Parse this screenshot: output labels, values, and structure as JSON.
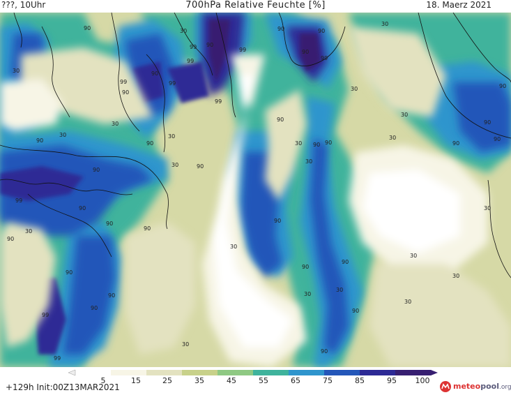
{
  "header": {
    "left": "???, 10Uhr",
    "center": "700hPa Relative Feuchte [%]",
    "right": "18. Maerz 2021"
  },
  "footer": {
    "init": "+129h Init:00Z13MAR2021"
  },
  "logo": {
    "brand_part1": "meteo",
    "brand_part2": "pool",
    "suffix": ".org"
  },
  "legend": {
    "labels": [
      "5",
      "15",
      "25",
      "35",
      "45",
      "55",
      "65",
      "75",
      "85",
      "95",
      "100"
    ],
    "colors": [
      "#ffffff",
      "#f7f5e6",
      "#e3e2c0",
      "#c8d18a",
      "#8fc983",
      "#3fb39c",
      "#2f95cd",
      "#2457b9",
      "#2d2a95",
      "#371f71"
    ]
  },
  "map": {
    "contour_labels": [
      "30",
      "90",
      "99",
      "90",
      "99",
      "90",
      "99",
      "90",
      "99",
      "99",
      "90",
      "99",
      "90",
      "30",
      "30",
      "90",
      "30",
      "90",
      "30",
      "90",
      "90",
      "30",
      "90",
      "99",
      "90",
      "90",
      "90",
      "30",
      "90",
      "30",
      "30",
      "30",
      "90",
      "30",
      "90",
      "99",
      "90",
      "30",
      "90",
      "90",
      "90",
      "90",
      "30",
      "30",
      "90",
      "30",
      "90",
      "90",
      "30",
      "30",
      "90",
      "90",
      "30",
      "30",
      "30",
      "99",
      "90",
      "90",
      "99",
      "30",
      "90"
    ]
  }
}
